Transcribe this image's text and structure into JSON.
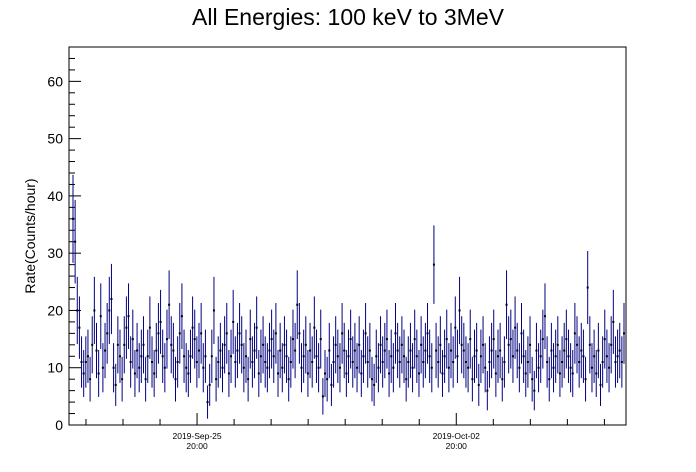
{
  "chart_data": {
    "type": "scatter",
    "title": "All Energies:  100 keV to 3MeV",
    "xlabel": "",
    "ylabel": "Rate(Counts/hour)",
    "x_tick_labels": [
      {
        "date": "2019-Sep-25",
        "time": "20:00"
      },
      {
        "date": "2019-Oct-02",
        "time": "20:00"
      }
    ],
    "y_ticks": [
      0,
      10,
      20,
      30,
      40,
      50,
      60
    ],
    "ylim": [
      0,
      66
    ],
    "xlim_hours": [
      -83.0,
      278.0
    ],
    "x_unit": "hours relative to 2019-Sep-25 20:00",
    "marker_color": "#000080",
    "series": [
      {
        "values": [
          36,
          32,
          20,
          17,
          11,
          9,
          11,
          12,
          8,
          14,
          20,
          13,
          9,
          19,
          10,
          13,
          16,
          20,
          22,
          10,
          7,
          14,
          12,
          8,
          14,
          17,
          19,
          11,
          15,
          9,
          13,
          10,
          12,
          14,
          8,
          12,
          17,
          11,
          9,
          13,
          16,
          18,
          12,
          10,
          15,
          21,
          14,
          13,
          8,
          11,
          16,
          19,
          12,
          10,
          9,
          12,
          17,
          15,
          11,
          13,
          16,
          10,
          12,
          4,
          7,
          12,
          20,
          8,
          11,
          13,
          10,
          14,
          16,
          9,
          12,
          18,
          11,
          13,
          16,
          14,
          10,
          12,
          8,
          15,
          11,
          13,
          17,
          9,
          12,
          14,
          11,
          10,
          13,
          15,
          12,
          16,
          9,
          13,
          10,
          14,
          12,
          8,
          11,
          15,
          13,
          21,
          16,
          10,
          12,
          14,
          9,
          13,
          11,
          17,
          12,
          10,
          15,
          5,
          9,
          8,
          13,
          7,
          11,
          14,
          12,
          10,
          16,
          13,
          9,
          12,
          15,
          11,
          13,
          10,
          14,
          9,
          12,
          16,
          11,
          13,
          8,
          7,
          12,
          10,
          14,
          11,
          13,
          15,
          9,
          12,
          10,
          16,
          13,
          11,
          14,
          12,
          8,
          11,
          13,
          10,
          15,
          12,
          9,
          14,
          11,
          13,
          16,
          12,
          10,
          28,
          13,
          11,
          14,
          9,
          12,
          15,
          10,
          13,
          11,
          17,
          12,
          20,
          14,
          13,
          11,
          10,
          15,
          8,
          12,
          13,
          7,
          12,
          14,
          10,
          6,
          11,
          13,
          15,
          9,
          12,
          13,
          8,
          11,
          21,
          14,
          15,
          12,
          17,
          13,
          10,
          16,
          12,
          9,
          11,
          14,
          8,
          6,
          13,
          10,
          12,
          15,
          19,
          11,
          8,
          13,
          10,
          12,
          14,
          9,
          11,
          13,
          15,
          12,
          10,
          9,
          16,
          14,
          11,
          13,
          12,
          8,
          24,
          14,
          10,
          12,
          9,
          13,
          7,
          11,
          15,
          12,
          10,
          14,
          18,
          11,
          12,
          13,
          11,
          16
        ]
      }
    ]
  }
}
